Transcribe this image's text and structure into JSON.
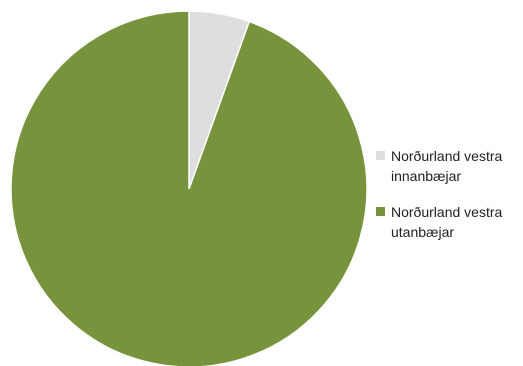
{
  "chart_data": {
    "type": "pie",
    "title": "",
    "slices": [
      {
        "label_line1": "Norðurland vestra",
        "label_line2": "innanbæjar",
        "value": 5.5,
        "color": "#dedede"
      },
      {
        "label_line1": "Norðurland vestra",
        "label_line2": "utanbæjar",
        "value": 94.5,
        "color": "#77933c"
      }
    ],
    "legend_position": "right"
  }
}
